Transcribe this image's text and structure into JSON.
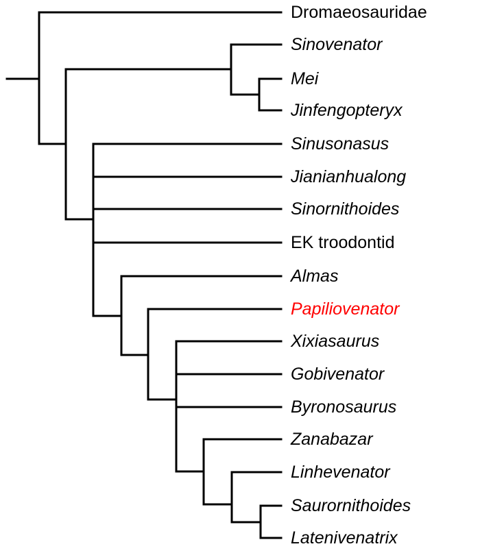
{
  "tree": {
    "taxa": [
      {
        "name": "Dromaeosauridae",
        "italic": false,
        "color": "#000000"
      },
      {
        "name": "Sinovenator",
        "italic": true,
        "color": "#000000"
      },
      {
        "name": "Mei",
        "italic": true,
        "color": "#000000"
      },
      {
        "name": "Jinfengopteryx",
        "italic": true,
        "color": "#000000"
      },
      {
        "name": "Sinusonasus",
        "italic": true,
        "color": "#000000"
      },
      {
        "name": "Jianianhualong",
        "italic": true,
        "color": "#000000"
      },
      {
        "name": "Sinornithoides",
        "italic": true,
        "color": "#000000"
      },
      {
        "name": "EK troodontid",
        "italic": false,
        "color": "#000000"
      },
      {
        "name": "Almas",
        "italic": true,
        "color": "#000000"
      },
      {
        "name": "Papiliovenator",
        "italic": true,
        "color": "#ff0000"
      },
      {
        "name": "Xixiasaurus",
        "italic": true,
        "color": "#000000"
      },
      {
        "name": "Gobivenator",
        "italic": true,
        "color": "#000000"
      },
      {
        "name": "Byronosaurus",
        "italic": true,
        "color": "#000000"
      },
      {
        "name": "Zanabazar",
        "italic": true,
        "color": "#000000"
      },
      {
        "name": "Linhevenator",
        "italic": true,
        "color": "#000000"
      },
      {
        "name": "Saurornithoides",
        "italic": true,
        "color": "#000000"
      },
      {
        "name": "Latenivenatrix",
        "italic": true,
        "color": "#000000"
      }
    ]
  }
}
